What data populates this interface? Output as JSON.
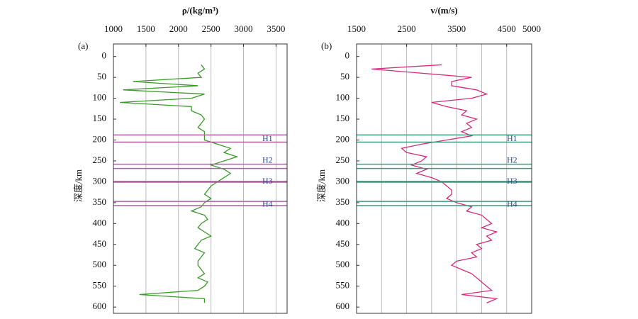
{
  "chart_data": [
    {
      "type": "line",
      "panel": "(a)",
      "x_label": "ρ/(kg/m³)",
      "y_label": "深度/km",
      "xlim": [
        1000,
        3670
      ],
      "xticks": [
        1000,
        1500,
        2000,
        2500,
        3000,
        3500
      ],
      "ylim": [
        -30,
        615
      ],
      "y_inverted": true,
      "yticks": [
        0,
        50,
        100,
        150,
        200,
        250,
        300,
        350,
        400,
        450,
        500,
        550,
        600
      ],
      "grid": true,
      "color": "#3a9a2a",
      "horizon_color": "#b05ca0",
      "depth": [
        20,
        30,
        40,
        50,
        60,
        70,
        80,
        90,
        100,
        110,
        120,
        130,
        140,
        150,
        160,
        170,
        180,
        190,
        200,
        210,
        220,
        230,
        240,
        250,
        260,
        270,
        280,
        290,
        300,
        310,
        320,
        330,
        340,
        350,
        360,
        370,
        380,
        390,
        400,
        410,
        420,
        430,
        440,
        450,
        460,
        470,
        480,
        490,
        500,
        510,
        520,
        530,
        540,
        550,
        560,
        570,
        580,
        590
      ],
      "values": [
        2350,
        2400,
        2300,
        2350,
        1300,
        2300,
        1150,
        2400,
        2200,
        1100,
        2200,
        2200,
        2350,
        2400,
        2350,
        2300,
        2400,
        2400,
        2400,
        2600,
        2800,
        2700,
        2900,
        2700,
        2500,
        2700,
        2800,
        2700,
        2600,
        2500,
        2450,
        2400,
        2500,
        2400,
        2350,
        2200,
        2400,
        2450,
        2350,
        2300,
        2400,
        2500,
        2350,
        2300,
        2250,
        2400,
        2350,
        2300,
        2300,
        2350,
        2400,
        2300,
        2450,
        2400,
        2300,
        1400,
        2400,
        2400
      ],
      "horizons": [
        {
          "label": "H1",
          "top": 188,
          "bottom": 205,
          "label_depth": 198
        },
        {
          "label": "H2",
          "top": 258,
          "bottom": 268,
          "label_depth": 250
        },
        {
          "label": "H3",
          "top": 299,
          "bottom": 301,
          "label_depth": 300
        },
        {
          "label": "H4",
          "top": 347,
          "bottom": 357,
          "label_depth": 355
        }
      ]
    },
    {
      "type": "line",
      "panel": "(b)",
      "x_label": "v/(m/s)",
      "y_label": "深度/km",
      "xlim": [
        1500,
        5000
      ],
      "xticks": [
        1500,
        2500,
        3500,
        4500,
        5000
      ],
      "grid_step_ticks": [
        2000,
        2500,
        3000,
        3500,
        4000,
        4500
      ],
      "ylim": [
        -30,
        615
      ],
      "y_inverted": true,
      "yticks": [
        0,
        50,
        100,
        150,
        200,
        250,
        300,
        350,
        400,
        450,
        500,
        550,
        600
      ],
      "grid": true,
      "color": "#d62a7a",
      "horizon_color": "#3a9a7a",
      "depth": [
        20,
        30,
        40,
        50,
        60,
        70,
        80,
        90,
        100,
        110,
        120,
        130,
        140,
        150,
        160,
        170,
        180,
        190,
        200,
        210,
        220,
        230,
        240,
        250,
        260,
        270,
        280,
        290,
        300,
        310,
        320,
        330,
        340,
        350,
        360,
        370,
        380,
        390,
        400,
        410,
        420,
        430,
        440,
        450,
        460,
        470,
        480,
        490,
        500,
        510,
        520,
        530,
        540,
        550,
        560,
        570,
        580,
        590
      ],
      "values": [
        3200,
        1800,
        2800,
        3800,
        3400,
        3400,
        3900,
        4100,
        3800,
        3000,
        3300,
        3700,
        3600,
        3900,
        3700,
        3800,
        3600,
        3800,
        3300,
        2800,
        2400,
        2500,
        2900,
        2800,
        2600,
        2900,
        2700,
        3000,
        3200,
        3300,
        3400,
        3400,
        3300,
        3500,
        3800,
        3700,
        4000,
        4100,
        4200,
        4000,
        4300,
        4100,
        4200,
        3900,
        4000,
        3800,
        3900,
        3500,
        3400,
        3600,
        3800,
        3900,
        4000,
        4100,
        4200,
        3600,
        4300,
        4100
      ],
      "horizons": [
        {
          "label": "H1",
          "top": 188,
          "bottom": 205,
          "label_depth": 198
        },
        {
          "label": "H2",
          "top": 258,
          "bottom": 268,
          "label_depth": 250
        },
        {
          "label": "H3",
          "top": 299,
          "bottom": 301,
          "label_depth": 300
        },
        {
          "label": "H4",
          "top": 347,
          "bottom": 357,
          "label_depth": 355
        }
      ]
    }
  ]
}
